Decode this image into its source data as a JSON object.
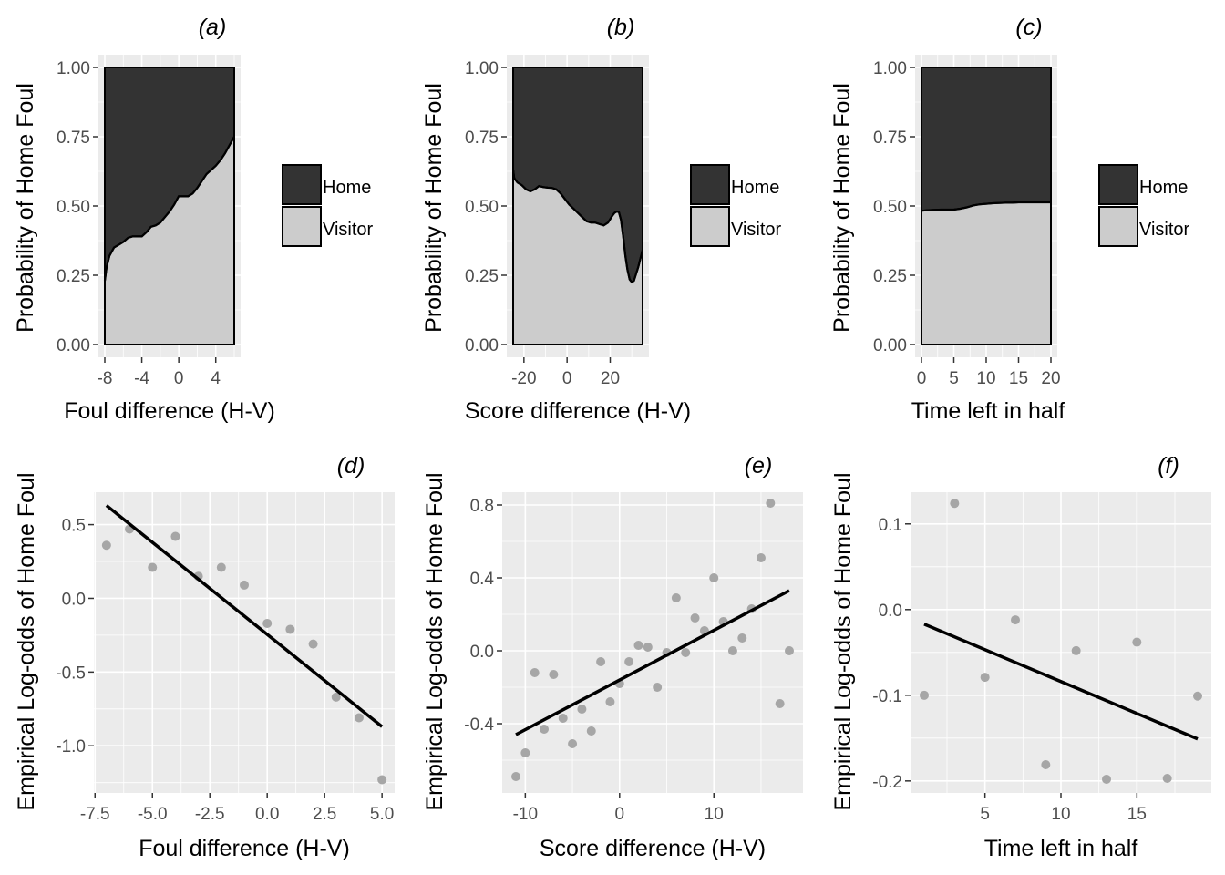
{
  "colors": {
    "panel_bg": "#ebebeb",
    "grid": "#ffffff",
    "home_fill": "#333333",
    "visitor_fill": "#cccccc",
    "point": "#a6a6a6",
    "line": "#000000",
    "tick_text": "#4d4d4d"
  },
  "chart_data": [
    {
      "id": "a",
      "type": "area",
      "title": "(a)",
      "xlabel": "Foul difference (H-V)",
      "ylabel": "Probability of Home Foul",
      "xlim": [
        -8,
        6
      ],
      "ylim": [
        0,
        1
      ],
      "xticks": [
        -8,
        -4,
        0,
        4
      ],
      "xtick_labels": [
        "-8",
        "-4",
        "0",
        "4"
      ],
      "yticks": [
        0,
        0.25,
        0.5,
        0.75,
        1
      ],
      "ytick_labels": [
        "0.00",
        "0.25",
        "0.50",
        "0.75",
        "1.00"
      ],
      "legend": {
        "position": "right",
        "entries": [
          "Home",
          "Visitor"
        ]
      },
      "boundary": {
        "x": [
          -8,
          -7.8,
          -7.5,
          -7,
          -6.5,
          -6,
          -5.5,
          -5,
          -4.5,
          -4,
          -3.5,
          -3,
          -2.5,
          -2,
          -1.5,
          -1,
          -0.5,
          0,
          0.5,
          1,
          1.5,
          2,
          2.5,
          3,
          3.5,
          4,
          4.5,
          5,
          5.5,
          6
        ],
        "y": [
          0.23,
          0.28,
          0.32,
          0.35,
          0.36,
          0.37,
          0.385,
          0.39,
          0.39,
          0.39,
          0.405,
          0.425,
          0.43,
          0.44,
          0.46,
          0.48,
          0.505,
          0.535,
          0.535,
          0.535,
          0.545,
          0.565,
          0.59,
          0.615,
          0.63,
          0.645,
          0.665,
          0.69,
          0.72,
          0.75
        ]
      },
      "series": [
        {
          "name": "Home",
          "description": "upper band, from boundary to 1.0"
        },
        {
          "name": "Visitor",
          "description": "lower band, from 0 to boundary"
        }
      ]
    },
    {
      "id": "b",
      "type": "area",
      "title": "(b)",
      "xlabel": "Score difference (H-V)",
      "ylabel": "Probability of Home Foul",
      "xlim": [
        -25,
        35
      ],
      "ylim": [
        0,
        1
      ],
      "xticks": [
        -20,
        0,
        20
      ],
      "xtick_labels": [
        "-20",
        "0",
        "20"
      ],
      "yticks": [
        0,
        0.25,
        0.5,
        0.75,
        1
      ],
      "ytick_labels": [
        "0.00",
        "0.25",
        "0.50",
        "0.75",
        "1.00"
      ],
      "legend": {
        "position": "right",
        "entries": [
          "Home",
          "Visitor"
        ]
      },
      "boundary": {
        "x": [
          -25,
          -24.5,
          -23,
          -21,
          -19,
          -17,
          -15,
          -13,
          -11,
          -9,
          -7,
          -5,
          -3,
          -1,
          1,
          3,
          5,
          7,
          9,
          11,
          13,
          15,
          17,
          19,
          21,
          22,
          23,
          24,
          25,
          26,
          27,
          28,
          29,
          30,
          31,
          32,
          33,
          34,
          35
        ],
        "y": [
          0.63,
          0.6,
          0.585,
          0.575,
          0.56,
          0.553,
          0.56,
          0.572,
          0.568,
          0.566,
          0.565,
          0.56,
          0.545,
          0.525,
          0.505,
          0.49,
          0.475,
          0.46,
          0.445,
          0.44,
          0.44,
          0.435,
          0.43,
          0.44,
          0.465,
          0.475,
          0.48,
          0.478,
          0.45,
          0.39,
          0.32,
          0.27,
          0.235,
          0.225,
          0.23,
          0.255,
          0.28,
          0.31,
          0.34
        ]
      },
      "series": [
        {
          "name": "Home",
          "description": "upper band"
        },
        {
          "name": "Visitor",
          "description": "lower band"
        }
      ]
    },
    {
      "id": "c",
      "type": "area",
      "title": "(c)",
      "xlabel": "Time left in half",
      "ylabel": "Probability of Home Foul",
      "xlim": [
        0,
        20
      ],
      "ylim": [
        0,
        1
      ],
      "xticks": [
        0,
        5,
        10,
        15,
        20
      ],
      "xtick_labels": [
        "0",
        "5",
        "10",
        "15",
        "20"
      ],
      "yticks": [
        0,
        0.25,
        0.5,
        0.75,
        1
      ],
      "ytick_labels": [
        "0.00",
        "0.25",
        "0.50",
        "0.75",
        "1.00"
      ],
      "legend": {
        "position": "right",
        "entries": [
          "Home",
          "Visitor"
        ]
      },
      "boundary": {
        "x": [
          0,
          1,
          2,
          3,
          4,
          5,
          6,
          7,
          8,
          9,
          10,
          11,
          12,
          13,
          14,
          15,
          16,
          17,
          18,
          19,
          20
        ],
        "y": [
          0.483,
          0.485,
          0.486,
          0.487,
          0.487,
          0.487,
          0.49,
          0.495,
          0.502,
          0.506,
          0.508,
          0.51,
          0.511,
          0.512,
          0.512,
          0.513,
          0.513,
          0.513,
          0.513,
          0.513,
          0.513
        ]
      },
      "series": [
        {
          "name": "Home",
          "description": "upper band"
        },
        {
          "name": "Visitor",
          "description": "lower band"
        }
      ]
    },
    {
      "id": "d",
      "type": "scatter",
      "title": "(d)",
      "xlabel": "Foul difference (H-V)",
      "ylabel": "Empirical Log-odds of Home Foul",
      "xlim": [
        -7.55,
        5.55
      ],
      "ylim": [
        -1.32,
        0.72
      ],
      "xticks": [
        -7.5,
        -5.0,
        -2.5,
        0.0,
        2.5,
        5.0
      ],
      "xtick_labels": [
        "-7.5",
        "-5.0",
        "-2.5",
        "0.0",
        "2.5",
        "5.0"
      ],
      "yticks": [
        -1.0,
        -0.5,
        0.0,
        0.5
      ],
      "ytick_labels": [
        "-1.0",
        "-0.5",
        "0.0",
        "0.5"
      ],
      "points": {
        "x": [
          -7,
          -6,
          -5,
          -4,
          -3,
          -2,
          -1,
          0,
          1,
          2,
          3,
          4,
          5
        ],
        "y": [
          0.36,
          0.47,
          0.21,
          0.42,
          0.15,
          0.21,
          0.09,
          -0.17,
          -0.21,
          -0.31,
          -0.67,
          -0.81,
          -1.23
        ]
      },
      "fit_line": {
        "x": [
          -7,
          5
        ],
        "y": [
          0.63,
          -0.87
        ]
      }
    },
    {
      "id": "e",
      "type": "scatter",
      "title": "(e)",
      "xlabel": "Score difference (H-V)",
      "ylabel": "Empirical Log-odds of Home Foul",
      "xlim": [
        -12.45,
        19.45
      ],
      "ylim": [
        -0.78,
        0.87
      ],
      "xticks": [
        -10,
        0,
        10
      ],
      "xtick_labels": [
        "-10",
        "0",
        "10"
      ],
      "yticks": [
        -0.4,
        0.0,
        0.4,
        0.8
      ],
      "ytick_labels": [
        "-0.4",
        "0.0",
        "0.4",
        "0.8"
      ],
      "points": {
        "x": [
          -11,
          -10,
          -9,
          -8,
          -7,
          -6,
          -5,
          -4,
          -3,
          -2,
          -1,
          0,
          1,
          2,
          3,
          4,
          5,
          6,
          7,
          8,
          9,
          10,
          11,
          12,
          13,
          14,
          15,
          16,
          17,
          18
        ],
        "y": [
          -0.69,
          -0.56,
          -0.12,
          -0.43,
          -0.13,
          -0.37,
          -0.51,
          -0.32,
          -0.44,
          -0.06,
          -0.28,
          -0.18,
          -0.06,
          0.03,
          0.02,
          -0.2,
          -0.01,
          0.29,
          -0.01,
          0.18,
          0.11,
          0.4,
          0.16,
          0.0,
          0.07,
          0.23,
          0.51,
          0.81,
          -0.29,
          0.0
        ]
      },
      "fit_line": {
        "x": [
          -11,
          18
        ],
        "y": [
          -0.46,
          0.33
        ]
      }
    },
    {
      "id": "f",
      "type": "scatter",
      "title": "(f)",
      "xlabel": "Time left in half",
      "ylabel": "Empirical Log-odds of Home Foul",
      "xlim": [
        0.1,
        19.9
      ],
      "ylim": [
        -0.214,
        0.137
      ],
      "xticks": [
        5,
        10,
        15
      ],
      "xtick_labels": [
        "5",
        "10",
        "15"
      ],
      "yticks": [
        -0.2,
        -0.1,
        0.0,
        0.1
      ],
      "ytick_labels": [
        "-0.2",
        "-0.1",
        "0.0",
        "0.1"
      ],
      "points": {
        "x": [
          1,
          3,
          5,
          7,
          9,
          11,
          13,
          15,
          17,
          19
        ],
        "y": [
          -0.1,
          0.124,
          -0.079,
          -0.012,
          -0.181,
          -0.048,
          -0.198,
          -0.038,
          -0.197,
          -0.101
        ]
      },
      "fit_line": {
        "x": [
          1,
          19
        ],
        "y": [
          -0.017,
          -0.151
        ]
      }
    }
  ]
}
